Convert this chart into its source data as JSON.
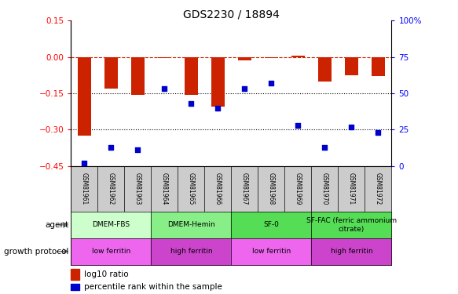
{
  "title": "GDS2230 / 18894",
  "samples": [
    "GSM81961",
    "GSM81962",
    "GSM81963",
    "GSM81964",
    "GSM81965",
    "GSM81966",
    "GSM81967",
    "GSM81968",
    "GSM81969",
    "GSM81970",
    "GSM81971",
    "GSM81972"
  ],
  "log10_ratio": [
    -0.325,
    -0.13,
    -0.155,
    -0.005,
    -0.155,
    -0.205,
    -0.015,
    -0.005,
    0.005,
    -0.1,
    -0.075,
    -0.08
  ],
  "percentile_rank": [
    2,
    13,
    11,
    53,
    43,
    40,
    53,
    57,
    28,
    13,
    27,
    23
  ],
  "ylim_left": [
    -0.45,
    0.15
  ],
  "ylim_right": [
    0,
    100
  ],
  "yticks_left": [
    0.15,
    0.0,
    -0.15,
    -0.3,
    -0.45
  ],
  "yticks_right": [
    100,
    75,
    50,
    25,
    0
  ],
  "dotted_lines": [
    -0.15,
    -0.3
  ],
  "bar_color": "#CC2200",
  "dot_color": "#0000CC",
  "agent_groups": [
    {
      "label": "DMEM-FBS",
      "start": 0,
      "end": 3,
      "color": "#CCFFCC"
    },
    {
      "label": "DMEM-Hemin",
      "start": 3,
      "end": 6,
      "color": "#88EE88"
    },
    {
      "label": "SF-0",
      "start": 6,
      "end": 9,
      "color": "#55DD55"
    },
    {
      "label": "SF-FAC (ferric ammonium\ncitrate)",
      "start": 9,
      "end": 12,
      "color": "#55DD55"
    }
  ],
  "growth_groups": [
    {
      "label": "low ferritin",
      "start": 0,
      "end": 3,
      "color": "#EE66EE"
    },
    {
      "label": "high ferritin",
      "start": 3,
      "end": 6,
      "color": "#CC44CC"
    },
    {
      "label": "low ferritin",
      "start": 6,
      "end": 9,
      "color": "#EE66EE"
    },
    {
      "label": "high ferritin",
      "start": 9,
      "end": 12,
      "color": "#CC44CC"
    }
  ],
  "legend_bar_label": "log10 ratio",
  "legend_dot_label": "percentile rank within the sample",
  "agent_label": "agent",
  "growth_label": "growth protocol",
  "bar_width": 0.5
}
